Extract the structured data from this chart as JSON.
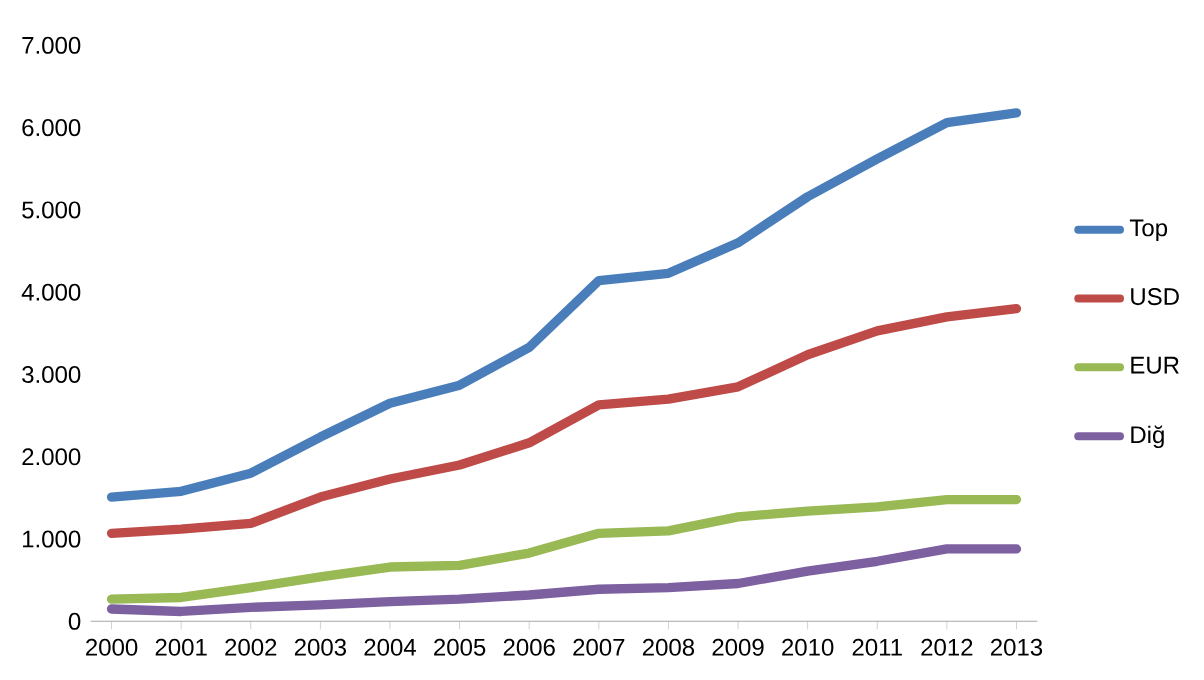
{
  "chart_data": {
    "type": "line",
    "categories": [
      "2000",
      "2001",
      "2002",
      "2003",
      "2004",
      "2005",
      "2006",
      "2007",
      "2008",
      "2009",
      "2010",
      "2011",
      "2012",
      "2013"
    ],
    "series": [
      {
        "name": "Top",
        "color": "#4a7ebb",
        "values": [
          1510,
          1580,
          1800,
          2240,
          2650,
          2870,
          3330,
          4140,
          4230,
          4600,
          5160,
          5620,
          6060,
          6180
        ]
      },
      {
        "name": "USD",
        "color": "#be4b48",
        "values": [
          1070,
          1120,
          1190,
          1510,
          1730,
          1900,
          2170,
          2630,
          2700,
          2850,
          3240,
          3530,
          3700,
          3800
        ]
      },
      {
        "name": "EUR",
        "color": "#98b954",
        "values": [
          270,
          290,
          410,
          540,
          660,
          680,
          830,
          1070,
          1100,
          1270,
          1340,
          1390,
          1480,
          1480
        ]
      },
      {
        "name": "Diğ",
        "color": "#7d60a0",
        "values": [
          150,
          120,
          170,
          200,
          240,
          270,
          320,
          390,
          410,
          460,
          610,
          730,
          880,
          880
        ]
      }
    ],
    "ylim": [
      0,
      7000
    ],
    "yticks": [
      0,
      {
        "value": 1000,
        "label": "1.000"
      },
      {
        "value": 2000,
        "label": "2.000"
      },
      {
        "value": 3000,
        "label": "3.000"
      },
      {
        "value": 4000,
        "label": "4.000"
      },
      {
        "value": 5000,
        "label": "5.000"
      },
      {
        "value": 6000,
        "label": "6.000"
      },
      {
        "value": 7000,
        "label": "7.000"
      }
    ],
    "legend": "right",
    "marker": "none",
    "line_style": "solid"
  }
}
